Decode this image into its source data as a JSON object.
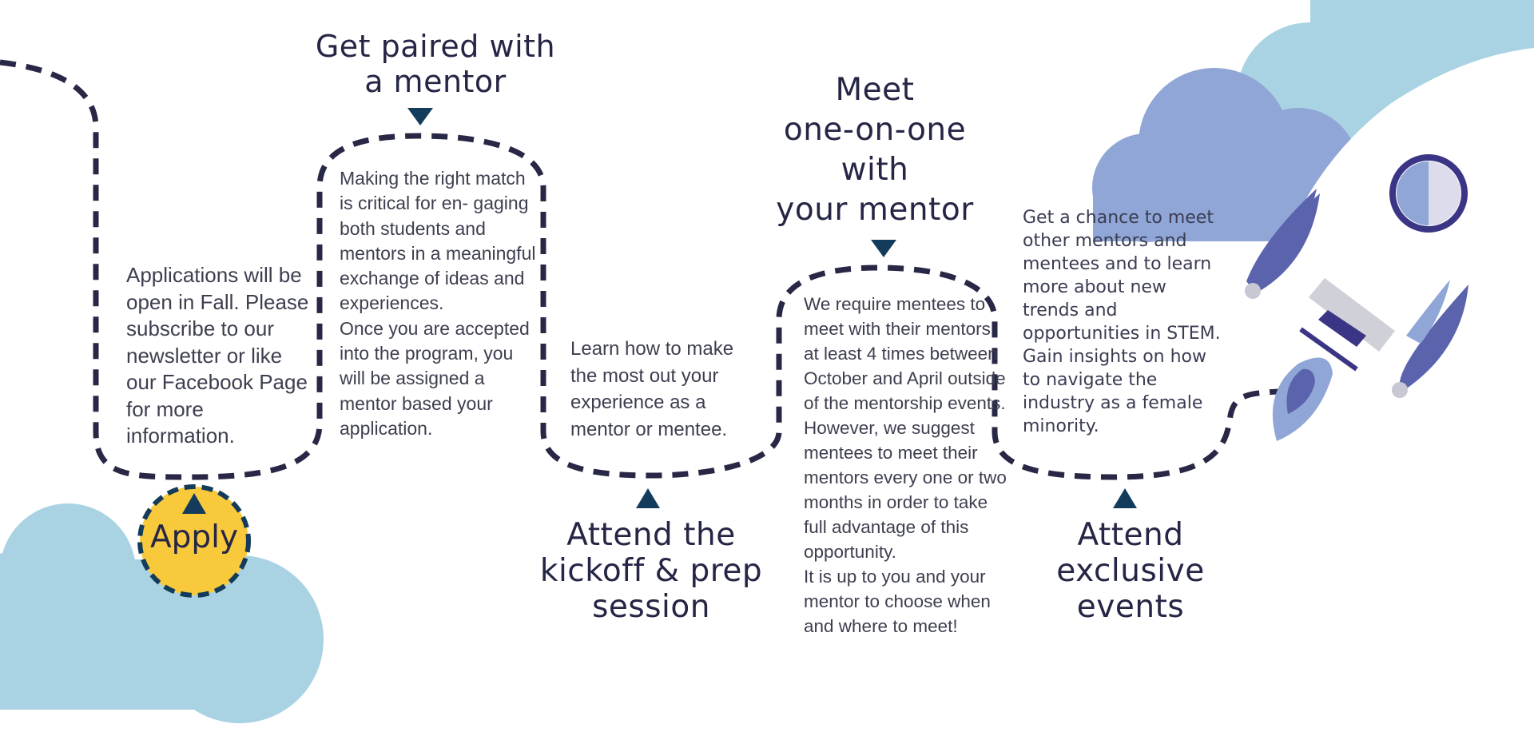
{
  "steps": {
    "apply": {
      "label": "Apply",
      "description": [
        "Applications will be open in Fall. Please subscribe to our newsletter or like our Facebook Page for more information."
      ]
    },
    "paired": {
      "title": [
        "Get paired with",
        "a mentor"
      ],
      "description": [
        "Making the right match is critical for en- gaging both students and mentors in a meaningful exchange of ideas and experiences.",
        "Once you are accepted into the program, you will be assigned a mentor based your application."
      ]
    },
    "kickoff": {
      "title": [
        "Attend the",
        "kickoff & prep",
        "session"
      ],
      "description": [
        "Learn how to make the most out your experience as a mentor or mentee."
      ]
    },
    "meet": {
      "title": [
        "Meet",
        "one-on-one",
        "with",
        "your mentor"
      ],
      "description": [
        "We require mentees to meet with their mentors at least 4 times between October and April outside of the mentorship events.",
        "However, we suggest mentees to meet their mentors every one or two months in order to take full advantage of this opportunity.",
        "It is up to you and your mentor to choose when and where to meet!"
      ]
    },
    "events": {
      "title": [
        "Attend",
        "exclusive",
        "events"
      ],
      "description": [
        "Get a chance to meet other mentors and mentees and to learn more about new trends and opportunities in STEM. Gain insights on how to navigate the industry as a female minority."
      ]
    }
  },
  "colors": {
    "path": "#282846",
    "arrow": "#133c5c",
    "apply_circle": "#f9c93c",
    "cloud_light": "#a9d3e3",
    "cloud_mid": "#8fa6d6",
    "rocket_fin": "#5b63ad",
    "rocket_window": "#3a3585"
  },
  "icons": [
    "cloud-icon",
    "rocket-icon",
    "triangle-arrow-icon"
  ]
}
